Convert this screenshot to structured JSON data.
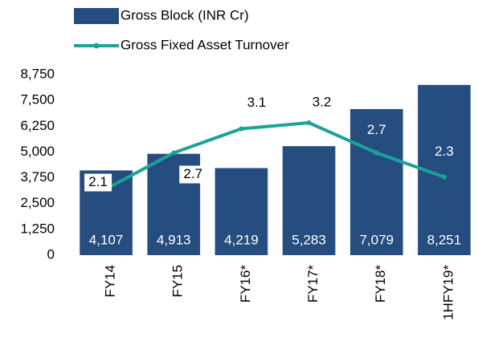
{
  "chart_data": {
    "type": "bar-line",
    "categories": [
      "FY14",
      "FY15",
      "FY16*",
      "FY17*",
      "FY18*",
      "1HFY19*"
    ],
    "series": [
      {
        "name": "Gross Block (INR Cr)",
        "type": "bar",
        "color": "#264d80",
        "values": [
          4107,
          4913,
          4219,
          5283,
          7079,
          8251
        ],
        "value_labels": [
          "4,107",
          "4,913",
          "4,219",
          "5,283",
          "7,079",
          "8,251"
        ]
      },
      {
        "name": "Gross Fixed Asset Turnover",
        "type": "line",
        "color": "#1aa397",
        "axis": "y2",
        "values": [
          2.1,
          2.7,
          3.1,
          3.2,
          2.7,
          2.3
        ]
      }
    ],
    "ylim": [
      0,
      8750
    ],
    "yticks": [
      0,
      {
        "value": 1250,
        "label": "1,250"
      },
      {
        "value": 2500,
        "label": "2,500"
      },
      {
        "value": 3750,
        "label": "3,750"
      },
      {
        "value": 5000,
        "label": "5,000"
      },
      {
        "value": 6250,
        "label": "6,250"
      },
      {
        "value": 7500,
        "label": "7,500"
      },
      {
        "value": 8750,
        "label": "8,750"
      }
    ],
    "y2lim": [
      1.0,
      4.0
    ],
    "legend": "top"
  }
}
